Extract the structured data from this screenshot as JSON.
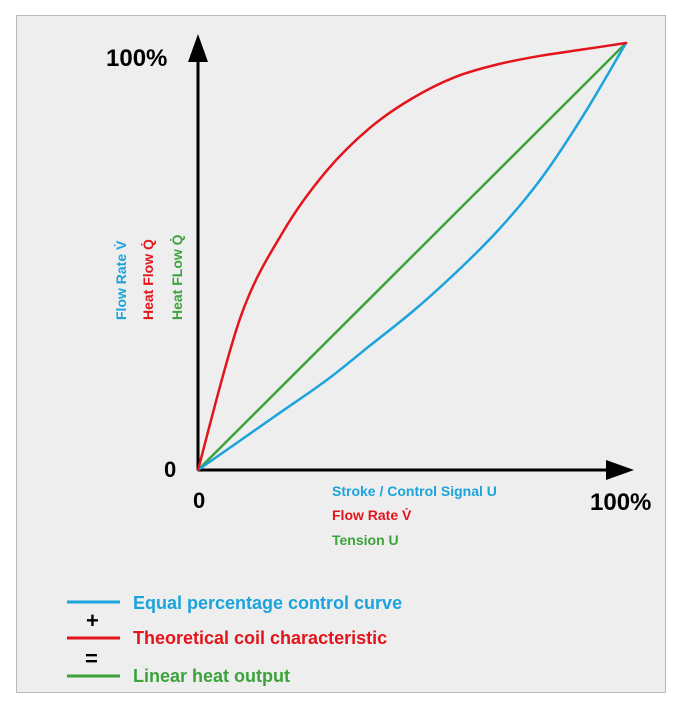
{
  "chart_data": {
    "type": "line",
    "title": "",
    "axes": {
      "y_max_label": "100%",
      "origin_y_label": "0",
      "origin_x_label": "0",
      "x_max_label": "100%",
      "xlim": [
        0,
        100
      ],
      "ylim": [
        0,
        100
      ]
    },
    "y_axis_labels": [
      {
        "text": "Flow Rate V̇",
        "color": "#1aa3dc"
      },
      {
        "text": "Heat Flow Q̇",
        "color": "#e3141b"
      },
      {
        "text": "Heat FLow Q̇",
        "color": "#3ca33a"
      }
    ],
    "x_axis_labels": [
      {
        "text": "Stroke / Control Signal U",
        "color": "#1aa3dc"
      },
      {
        "text": "Flow Rate V̇",
        "color": "#e3141b"
      },
      {
        "text": "Tension U",
        "color": "#3ca33a"
      }
    ],
    "series": [
      {
        "name": "Equal percentage control curve",
        "color": "#1aa3dc",
        "x": [
          0,
          10,
          20,
          30,
          40,
          50,
          60,
          70,
          80,
          90,
          100
        ],
        "y": [
          0,
          7,
          14,
          21,
          29,
          37,
          46,
          56,
          68,
          83,
          100
        ]
      },
      {
        "name": "Theoretical coil characteristic",
        "color": "#e3141b",
        "x": [
          0,
          10,
          20,
          30,
          40,
          50,
          60,
          70,
          80,
          90,
          100
        ],
        "y": [
          0,
          36,
          56,
          70,
          80,
          87,
          92,
          95,
          97,
          98.5,
          100
        ]
      },
      {
        "name": "Linear heat output",
        "color": "#3ca33a",
        "x": [
          0,
          100
        ],
        "y": [
          0,
          100
        ]
      }
    ],
    "legend": {
      "placement": "bottom-left",
      "operators": [
        "+",
        "="
      ]
    }
  }
}
